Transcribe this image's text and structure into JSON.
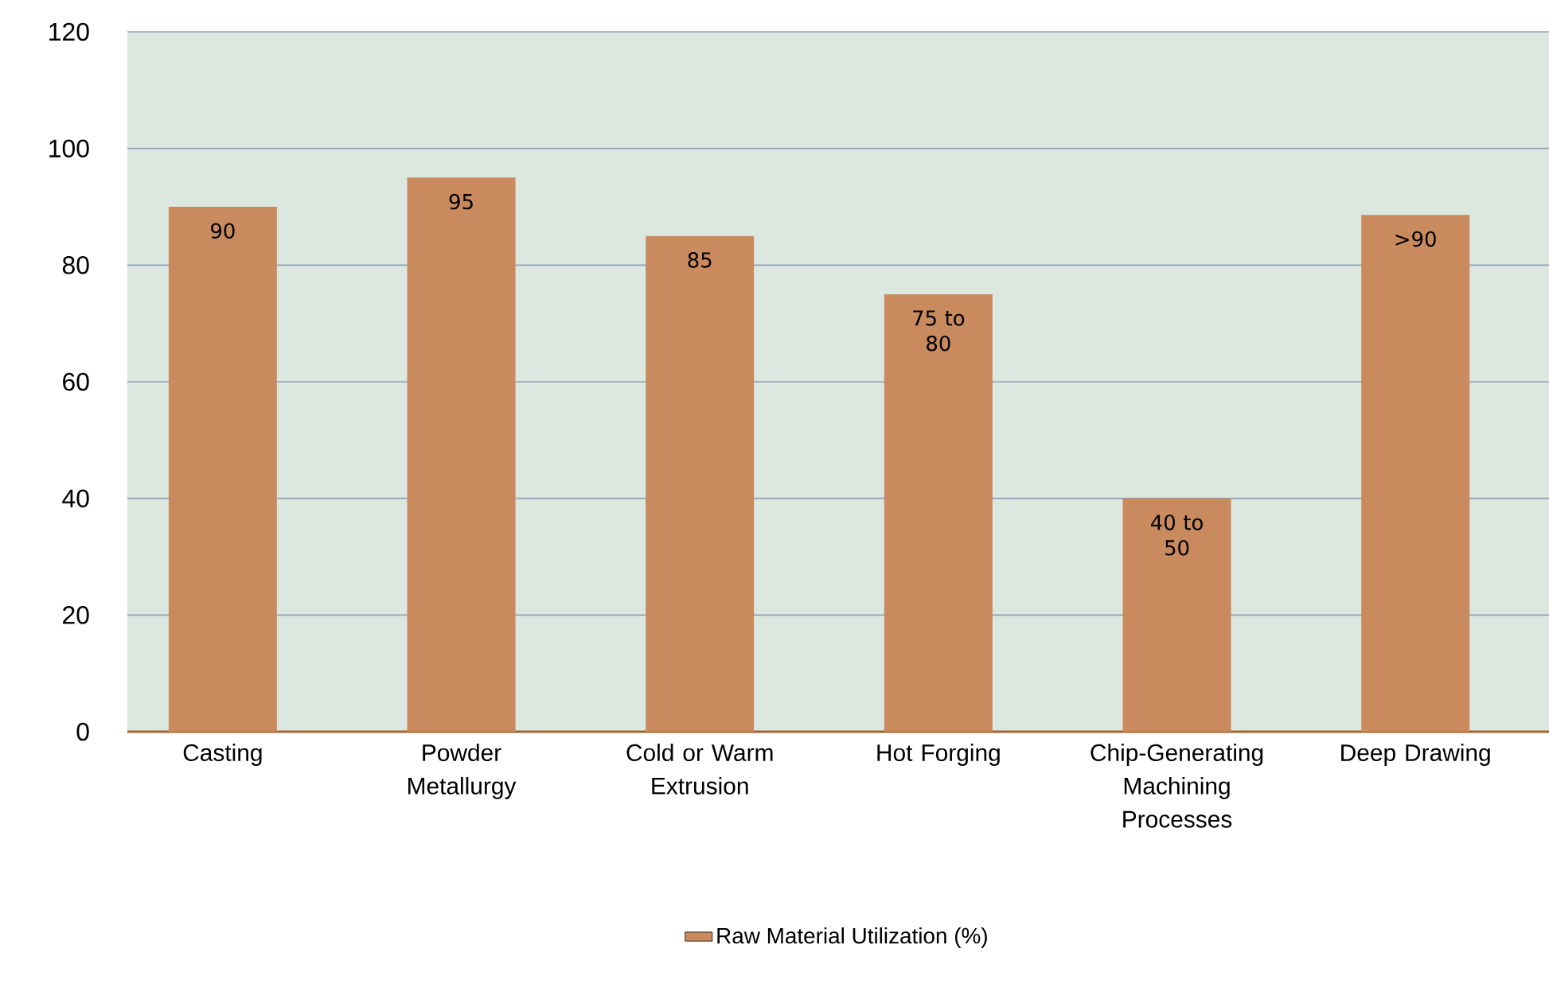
{
  "chart_data": {
    "type": "bar",
    "categories": [
      "Casting",
      "Powder Metallurgy",
      "Cold or Warm Extrusion",
      "Hot Forging",
      "Chip-Generating Machining Processes",
      "Deep Drawing"
    ],
    "series": [
      {
        "name": "Raw Material Utilization  (%)",
        "color": "#c98a5e",
        "values": [
          90,
          95,
          85,
          75,
          40,
          88.6
        ],
        "value_labels": [
          "90",
          "95",
          "85",
          "75 to 80",
          "40 to 50",
          ">90"
        ]
      }
    ],
    "ylim": [
      0,
      120
    ],
    "yticks": [
      0,
      20,
      40,
      60,
      80,
      100,
      120
    ],
    "grid": "y",
    "legend": "bottom"
  }
}
